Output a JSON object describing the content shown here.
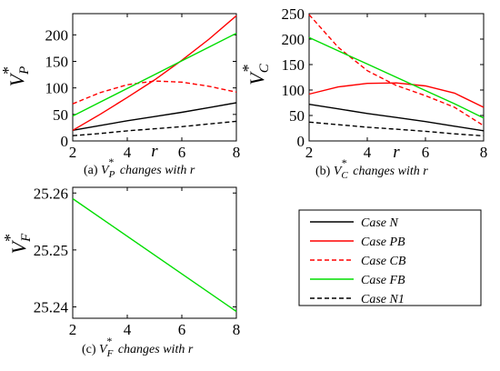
{
  "chart_data": [
    {
      "id": "a",
      "type": "line",
      "caption_prefix": "(a)",
      "caption_var": "V",
      "caption_sub": "P",
      "caption_suffix": "changes with r",
      "ylabel": "V",
      "ylabel_sub": "P",
      "ylabel_sup": "*",
      "xlabel": "r",
      "xlim": [
        2,
        8
      ],
      "ylim": [
        0,
        240
      ],
      "xticks": [
        2,
        4,
        6,
        8
      ],
      "yticks": [
        0,
        50,
        100,
        150,
        200
      ],
      "x": [
        2,
        3,
        4,
        5,
        6,
        7,
        8
      ],
      "series": [
        {
          "name": "Case N",
          "color": "#000000",
          "dash": false,
          "values": [
            20,
            29,
            38,
            46,
            54,
            63,
            72
          ]
        },
        {
          "name": "Case PB",
          "color": "#ff0000",
          "dash": false,
          "values": [
            20,
            50,
            82,
            115,
            152,
            192,
            236
          ]
        },
        {
          "name": "Case CB",
          "color": "#ff0000",
          "dash": true,
          "values": [
            70,
            91,
            106,
            113,
            111,
            103,
            92
          ]
        },
        {
          "name": "Case FB",
          "color": "#00dd00",
          "dash": false,
          "values": [
            47,
            73,
            99,
            125,
            151,
            177,
            203
          ]
        },
        {
          "name": "Case N1",
          "color": "#000000",
          "dash": true,
          "values": [
            10,
            14,
            19,
            23,
            27,
            32,
            37
          ]
        }
      ]
    },
    {
      "id": "b",
      "type": "line",
      "caption_prefix": "(b)",
      "caption_var": "V",
      "caption_sub": "C",
      "caption_suffix": "changes with r",
      "ylabel": "V",
      "ylabel_sub": "C",
      "ylabel_sup": "*",
      "xlabel": "r",
      "xlim": [
        2,
        8
      ],
      "ylim": [
        0,
        250
      ],
      "xticks": [
        2,
        4,
        6,
        8
      ],
      "yticks": [
        0,
        50,
        100,
        150,
        200,
        250
      ],
      "x": [
        2,
        3,
        4,
        5,
        6,
        7,
        8
      ],
      "series": [
        {
          "name": "Case N",
          "color": "#000000",
          "dash": false,
          "values": [
            72,
            63,
            54,
            46,
            38,
            29,
            20
          ]
        },
        {
          "name": "Case PB",
          "color": "#ff0000",
          "dash": false,
          "values": [
            92,
            106,
            113,
            114,
            108,
            94,
            66
          ]
        },
        {
          "name": "Case CB",
          "color": "#ff0000",
          "dash": true,
          "values": [
            248,
            184,
            138,
            109,
            89,
            66,
            30
          ]
        },
        {
          "name": "Case FB",
          "color": "#00dd00",
          "dash": false,
          "values": [
            203,
            177,
            151,
            125,
            99,
            73,
            45
          ]
        },
        {
          "name": "Case N1",
          "color": "#000000",
          "dash": true,
          "values": [
            37,
            32,
            27,
            23,
            19,
            14,
            10
          ]
        }
      ]
    },
    {
      "id": "c",
      "type": "line",
      "caption_prefix": "(c)",
      "caption_var": "V",
      "caption_sub": "F",
      "caption_suffix": "changes with r",
      "ylabel": "V",
      "ylabel_sub": "F",
      "ylabel_sup": "*",
      "xlabel": "",
      "xlim": [
        2,
        8
      ],
      "ylim": [
        25.238,
        25.261
      ],
      "xticks": [
        2,
        4,
        6,
        8
      ],
      "yticks": [
        25.24,
        25.25,
        25.26
      ],
      "x": [
        2,
        8
      ],
      "series": [
        {
          "name": "Case FB",
          "color": "#00dd00",
          "dash": false,
          "values": [
            25.259,
            25.2392
          ]
        }
      ]
    }
  ],
  "legend": [
    {
      "label": "Case N",
      "color": "#000000",
      "dash": false
    },
    {
      "label": "Case PB",
      "color": "#ff0000",
      "dash": false
    },
    {
      "label": "Case CB",
      "color": "#ff0000",
      "dash": true
    },
    {
      "label": "Case FB",
      "color": "#00dd00",
      "dash": false
    },
    {
      "label": "Case N1",
      "color": "#000000",
      "dash": true
    }
  ]
}
